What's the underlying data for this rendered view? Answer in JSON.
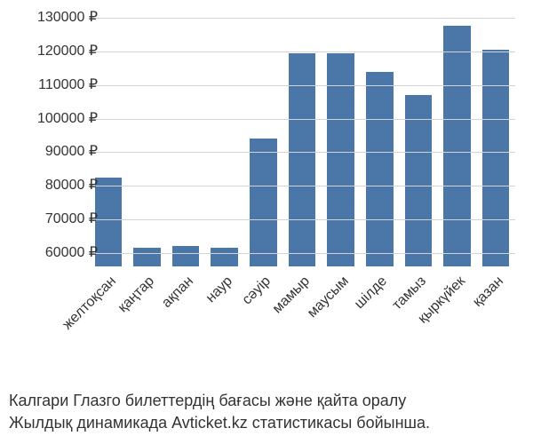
{
  "chart": {
    "type": "bar",
    "categories": [
      "желтоқсан",
      "қаңтар",
      "ақпан",
      "наур",
      "сәуір",
      "мамыр",
      "маусым",
      "шілде",
      "тамыз",
      "қыркүйек",
      "қазан"
    ],
    "values": [
      82500,
      61500,
      62000,
      61500,
      94000,
      119500,
      119500,
      114000,
      107000,
      127500,
      120500
    ],
    "bar_color": "#4a77a8",
    "background_color": "#ffffff",
    "grid_color": "#d3d3d3",
    "text_color": "#333333",
    "ylim_min": 56000,
    "ylim_max": 130000,
    "ytick_step": 10000,
    "ytick_min": 60000,
    "ytick_max": 130000,
    "ytick_suffix": " ₽",
    "bar_width_ratio": 0.7,
    "label_fontsize": 16,
    "caption_fontsize": 18,
    "x_label_rotation_deg": -45
  },
  "caption": {
    "line1": "Калгари Глазго билеттердің бағасы және қайта оралу",
    "line2": "Жылдық динамикада Avticket.kz статистикасы бойынша."
  }
}
